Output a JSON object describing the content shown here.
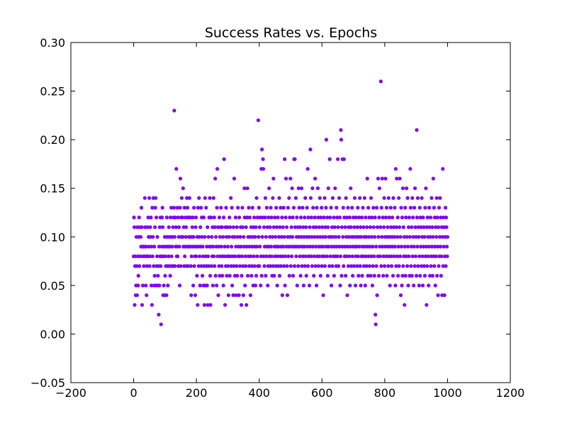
{
  "chart_data": {
    "type": "scatter",
    "title": "Success Rates vs. Epochs",
    "xlabel": "",
    "ylabel": "",
    "xlim": [
      -200,
      1200
    ],
    "ylim": [
      -0.05,
      0.3
    ],
    "xticks": [
      -200,
      0,
      200,
      400,
      600,
      800,
      1000,
      1200
    ],
    "xtick_labels": [
      "−200",
      "0",
      "200",
      "400",
      "600",
      "800",
      "1000",
      "1200"
    ],
    "yticks": [
      -0.05,
      0.0,
      0.05,
      0.1,
      0.15,
      0.2,
      0.25,
      0.3
    ],
    "ytick_labels": [
      "−0.05",
      "0.00",
      "0.05",
      "0.10",
      "0.15",
      "0.20",
      "0.25",
      "0.30"
    ],
    "grid": false,
    "marker_color": "#7F00FF",
    "y": [
      0.08,
      0.12,
      0.11,
      0.03,
      0.07,
      0.08,
      0.04,
      0.05,
      0.1,
      0.07,
      0.04,
      0.11,
      0.08,
      0.05,
      0.06,
      0.1,
      0.12,
      0.07,
      0.11,
      0.08,
      0.08,
      0.1,
      0.09,
      0.13,
      0.11,
      0.03,
      0.09,
      0.05,
      0.08,
      0.09,
      0.07,
      0.08,
      0.09,
      0.14,
      0.11,
      0.08,
      0.05,
      0.09,
      0.04,
      0.07,
      0.08,
      0.11,
      0.08,
      0.12,
      0.1,
      0.09,
      0.14,
      0.07,
      0.08,
      0.11,
      0.1,
      0.12,
      0.05,
      0.09,
      0.03,
      0.13,
      0.08,
      0.1,
      0.14,
      0.07,
      0.05,
      0.09,
      0.06,
      0.11,
      0.13,
      0.14,
      0.05,
      0.12,
      0.07,
      0.08,
      0.1,
      0.05,
      0.06,
      0.07,
      0.02,
      0.09,
      0.05,
      0.11,
      0.08,
      0.12,
      0.07,
      0.01,
      0.08,
      0.09,
      0.12,
      0.13,
      0.11,
      0.04,
      0.08,
      0.05,
      0.09,
      0.04,
      0.1,
      0.06,
      0.08,
      0.07,
      0.09,
      0.04,
      0.12,
      0.1,
      0.07,
      0.05,
      0.09,
      0.08,
      0.11,
      0.1,
      0.07,
      0.09,
      0.06,
      0.12,
      0.1,
      0.13,
      0.08,
      0.07,
      0.09,
      0.1,
      0.11,
      0.07,
      0.12,
      0.13,
      0.23,
      0.1,
      0.07,
      0.12,
      0.09,
      0.11,
      0.17,
      0.08,
      0.09,
      0.13,
      0.08,
      0.12,
      0.07,
      0.1,
      0.11,
      0.09,
      0.05,
      0.13,
      0.16,
      0.07,
      0.12,
      0.1,
      0.14,
      0.1,
      0.12,
      0.1,
      0.15,
      0.09,
      0.11,
      0.07,
      0.13,
      0.08,
      0.09,
      0.12,
      0.1,
      0.11,
      0.07,
      0.14,
      0.09,
      0.13,
      0.12,
      0.07,
      0.09,
      0.1,
      0.12,
      0.14,
      0.1,
      0.09,
      0.12,
      0.07,
      0.04,
      0.08,
      0.1,
      0.11,
      0.09,
      0.12,
      0.05,
      0.1,
      0.13,
      0.07,
      0.09,
      0.08,
      0.04,
      0.11,
      0.12,
      0.08,
      0.09,
      0.06,
      0.1,
      0.03,
      0.13,
      0.09,
      0.07,
      0.14,
      0.1,
      0.08,
      0.05,
      0.11,
      0.09,
      0.13,
      0.07,
      0.12,
      0.1,
      0.06,
      0.09,
      0.08,
      0.05,
      0.12,
      0.07,
      0.03,
      0.1,
      0.14,
      0.05,
      0.08,
      0.13,
      0.07,
      0.09,
      0.05,
      0.11,
      0.03,
      0.08,
      0.1,
      0.07,
      0.12,
      0.09,
      0.14,
      0.06,
      0.03,
      0.09,
      0.12,
      0.07,
      0.1,
      0.08,
      0.11,
      0.05,
      0.09,
      0.14,
      0.08,
      0.12,
      0.07,
      0.11,
      0.16,
      0.06,
      0.1,
      0.09,
      0.05,
      0.13,
      0.17,
      0.08,
      0.11,
      0.04,
      0.09,
      0.07,
      0.12,
      0.06,
      0.1,
      0.08,
      0.11,
      0.13,
      0.09,
      0.07,
      0.11,
      0.06,
      0.08,
      0.1,
      0.05,
      0.12,
      0.18,
      0.08,
      0.09,
      0.03,
      0.11,
      0.07,
      0.13,
      0.1,
      0.06,
      0.08,
      0.11,
      0.09,
      0.07,
      0.04,
      0.08,
      0.1,
      0.12,
      0.06,
      0.11,
      0.08,
      0.14,
      0.07,
      0.09,
      0.13,
      0.05,
      0.1,
      0.08,
      0.04,
      0.11,
      0.07,
      0.16,
      0.1,
      0.06,
      0.08,
      0.12,
      0.09,
      0.04,
      0.07,
      0.11,
      0.06,
      0.1,
      0.13,
      0.08,
      0.09,
      0.04,
      0.12,
      0.08,
      0.07,
      0.1,
      0.11,
      0.09,
      0.03,
      0.06,
      0.08,
      0.13,
      0.11,
      0.07,
      0.04,
      0.1,
      0.09,
      0.15,
      0.12,
      0.05,
      0.08,
      0.07,
      0.11,
      0.03,
      0.09,
      0.12,
      0.15,
      0.06,
      0.1,
      0.08,
      0.13,
      0.07,
      0.09,
      0.12,
      0.1,
      0.04,
      0.08,
      0.11,
      0.06,
      0.07,
      0.09,
      0.13,
      0.1,
      0.05,
      0.11,
      0.08,
      0.12,
      0.07,
      0.09,
      0.1,
      0.05,
      0.11,
      0.06,
      0.14,
      0.09,
      0.08,
      0.12,
      0.07,
      0.22,
      0.1,
      0.13,
      0.07,
      0.11,
      0.09,
      0.12,
      0.05,
      0.08,
      0.17,
      0.06,
      0.19,
      0.1,
      0.12,
      0.18,
      0.17,
      0.08,
      0.11,
      0.07,
      0.09,
      0.12,
      0.14,
      0.06,
      0.1,
      0.08,
      0.13,
      0.09,
      0.11,
      0.05,
      0.07,
      0.12,
      0.09,
      0.15,
      0.08,
      0.1,
      0.11,
      0.07,
      0.13,
      0.09,
      0.12,
      0.08,
      0.06,
      0.1,
      0.14,
      0.07,
      0.16,
      0.11,
      0.06,
      0.09,
      0.12,
      0.08,
      0.1,
      0.07,
      0.13,
      0.09,
      0.11,
      0.05,
      0.08,
      0.12,
      0.07,
      0.09,
      0.1,
      0.14,
      0.06,
      0.11,
      0.08,
      0.13,
      0.07,
      0.09,
      0.1,
      0.12,
      0.04,
      0.08,
      0.11,
      0.09,
      0.13,
      0.07,
      0.1,
      0.18,
      0.05,
      0.08,
      0.12,
      0.16,
      0.09,
      0.11,
      0.07,
      0.04,
      0.1,
      0.13,
      0.08,
      0.09,
      0.14,
      0.06,
      0.12,
      0.1,
      0.16,
      0.07,
      0.09,
      0.11,
      0.08,
      0.15,
      0.1,
      0.12,
      0.06,
      0.09,
      0.13,
      0.18,
      0.07,
      0.18,
      0.11,
      0.09,
      0.14,
      0.08,
      0.1,
      0.12,
      0.05,
      0.09,
      0.11,
      0.07,
      0.15,
      0.1,
      0.13,
      0.09,
      0.08,
      0.11,
      0.06,
      0.12,
      0.1,
      0.15,
      0.07,
      0.09,
      0.13,
      0.08,
      0.11,
      0.05,
      0.1,
      0.09,
      0.12,
      0.07,
      0.14,
      0.08,
      0.11,
      0.06,
      0.1,
      0.13,
      0.09,
      0.17,
      0.07,
      0.12,
      0.08,
      0.1,
      0.05,
      0.11,
      0.09,
      0.19,
      0.14,
      0.08,
      0.12,
      0.1,
      0.07,
      0.15,
      0.09,
      0.13,
      0.11,
      0.06,
      0.08,
      0.1,
      0.12,
      0.16,
      0.07,
      0.09,
      0.11,
      0.05,
      0.13,
      0.08,
      0.1,
      0.15,
      0.12,
      0.07,
      0.09,
      0.11,
      0.08,
      0.14,
      0.1,
      0.06,
      0.12,
      0.09,
      0.13,
      0.07,
      0.11,
      0.08,
      0.1,
      0.04,
      0.09,
      0.12,
      0.08,
      0.14,
      0.07,
      0.11,
      0.1,
      0.13,
      0.2,
      0.09,
      0.08,
      0.12,
      0.06,
      0.11,
      0.15,
      0.09,
      0.1,
      0.07,
      0.18,
      0.12,
      0.08,
      0.1,
      0.13,
      0.05,
      0.09,
      0.11,
      0.07,
      0.14,
      0.1,
      0.08,
      0.12,
      0.06,
      0.09,
      0.11,
      0.15,
      0.08,
      0.1,
      0.07,
      0.13,
      0.09,
      0.12,
      0.08,
      0.18,
      0.11,
      0.07,
      0.1,
      0.14,
      0.09,
      0.12,
      0.05,
      0.08,
      0.21,
      0.2,
      0.06,
      0.11,
      0.09,
      0.18,
      0.1,
      0.13,
      0.07,
      0.18,
      0.12,
      0.08,
      0.09,
      0.11,
      0.06,
      0.14,
      0.1,
      0.08,
      0.12,
      0.04,
      0.09,
      0.13,
      0.07,
      0.11,
      0.1,
      0.08,
      0.12,
      0.05,
      0.09,
      0.15,
      0.11,
      0.07,
      0.1,
      0.13,
      0.08,
      0.06,
      0.09,
      0.12,
      0.1,
      0.07,
      0.11,
      0.14,
      0.09,
      0.05,
      0.08,
      0.12,
      0.1,
      0.09,
      0.07,
      0.11,
      0.13,
      0.08,
      0.06,
      0.1,
      0.12,
      0.09,
      0.14,
      0.07,
      0.11,
      0.05,
      0.1,
      0.08,
      0.12,
      0.06,
      0.09,
      0.13,
      0.08,
      0.11,
      0.07,
      0.1,
      0.14,
      0.09,
      0.05,
      0.12,
      0.08,
      0.1,
      0.07,
      0.11,
      0.16,
      0.09,
      0.06,
      0.13,
      0.08,
      0.1,
      0.12,
      0.07,
      0.09,
      0.11,
      0.06,
      0.14,
      0.08,
      0.1,
      0.12,
      0.05,
      0.09,
      0.07,
      0.13,
      0.11,
      0.08,
      0.06,
      0.1,
      0.12,
      0.02,
      0.01,
      0.09,
      0.07,
      0.13,
      0.04,
      0.11,
      0.08,
      0.16,
      0.1,
      0.06,
      0.12,
      0.15,
      0.09,
      0.08,
      0.11,
      0.26,
      0.07,
      0.13,
      0.1,
      0.16,
      0.09,
      0.12,
      0.06,
      0.08,
      0.11,
      0.14,
      0.07,
      0.1,
      0.09,
      0.16,
      0.12,
      0.08,
      0.13,
      0.06,
      0.1,
      0.11,
      0.09,
      0.07,
      0.14,
      0.08,
      0.12,
      0.1,
      0.05,
      0.09,
      0.13,
      0.11,
      0.08,
      0.07,
      0.1,
      0.12,
      0.09,
      0.06,
      0.14,
      0.11,
      0.08,
      0.1,
      0.13,
      0.09,
      0.05,
      0.17,
      0.07,
      0.11,
      0.16,
      0.08,
      0.1,
      0.12,
      0.06,
      0.09,
      0.14,
      0.07,
      0.11,
      0.16,
      0.08,
      0.1,
      0.04,
      0.13,
      0.09,
      0.05,
      0.12,
      0.06,
      0.15,
      0.07,
      0.11,
      0.08,
      0.1,
      0.03,
      0.09,
      0.13,
      0.06,
      0.12,
      0.08,
      0.15,
      0.1,
      0.07,
      0.14,
      0.09,
      0.05,
      0.11,
      0.08,
      0.12,
      0.06,
      0.1,
      0.17,
      0.13,
      0.07,
      0.09,
      0.11,
      0.06,
      0.14,
      0.08,
      0.12,
      0.1,
      0.05,
      0.09,
      0.13,
      0.07,
      0.15,
      0.11,
      0.08,
      0.1,
      0.06,
      0.21,
      0.12,
      0.09,
      0.14,
      0.07,
      0.11,
      0.1,
      0.05,
      0.08,
      0.13,
      0.06,
      0.12,
      0.09,
      0.11,
      0.07,
      0.14,
      0.1,
      0.08,
      0.05,
      0.12,
      0.09,
      0.11,
      0.07,
      0.1,
      0.06,
      0.13,
      0.08,
      0.15,
      0.09,
      0.03,
      0.11,
      0.07,
      0.12,
      0.1,
      0.08,
      0.05,
      0.09,
      0.13,
      0.11,
      0.06,
      0.1,
      0.12,
      0.07,
      0.08,
      0.14,
      0.09,
      0.11,
      0.06,
      0.1,
      0.16,
      0.08,
      0.13,
      0.07,
      0.12,
      0.09,
      0.05,
      0.11,
      0.08,
      0.1,
      0.14,
      0.06,
      0.12,
      0.09,
      0.04,
      0.11,
      0.07,
      0.13,
      0.08,
      0.1,
      0.14,
      0.09,
      0.12,
      0.06,
      0.08,
      0.11,
      0.04,
      0.1,
      0.17,
      0.07,
      0.12,
      0.09,
      0.11,
      0.04,
      0.08,
      0.1,
      0.13,
      0.07,
      0.12,
      0.11,
      0.09,
      0.08,
      0.1
    ]
  }
}
